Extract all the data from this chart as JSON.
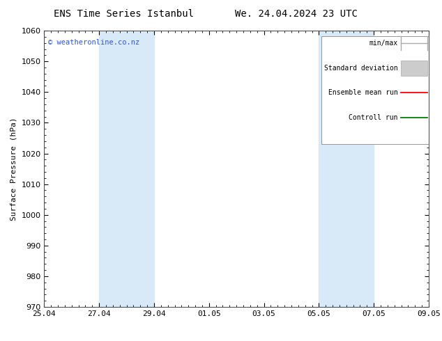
{
  "title_left": "ENS Time Series Istanbul",
  "title_right": "We. 24.04.2024 23 UTC",
  "ylabel": "Surface Pressure (hPa)",
  "ylim": [
    970,
    1060
  ],
  "yticks": [
    970,
    980,
    990,
    1000,
    1010,
    1020,
    1030,
    1040,
    1050,
    1060
  ],
  "xtick_labels": [
    "25.04",
    "27.04",
    "29.04",
    "01.05",
    "03.05",
    "05.05",
    "07.05",
    "09.05"
  ],
  "xtick_positions": [
    0,
    2,
    4,
    6,
    8,
    10,
    12,
    14
  ],
  "xlim": [
    0,
    14
  ],
  "shaded_regions": [
    {
      "x_start": 2,
      "x_end": 4
    },
    {
      "x_start": 10,
      "x_end": 12
    }
  ],
  "shaded_color": "#d8eaf8",
  "watermark_text": "© weatheronline.co.nz",
  "watermark_color": "#3355cc",
  "legend_items": [
    {
      "label": "min/max",
      "color": "#aaaaaa",
      "style": "minmax"
    },
    {
      "label": "Standard deviation",
      "color": "#cccccc",
      "style": "stddev"
    },
    {
      "label": "Ensemble mean run",
      "color": "red",
      "style": "line"
    },
    {
      "label": "Controll run",
      "color": "green",
      "style": "line"
    }
  ],
  "bg_color": "#ffffff",
  "font_color": "#000000",
  "title_fontsize": 10,
  "axis_fontsize": 8,
  "tick_fontsize": 8,
  "legend_fontsize": 7
}
